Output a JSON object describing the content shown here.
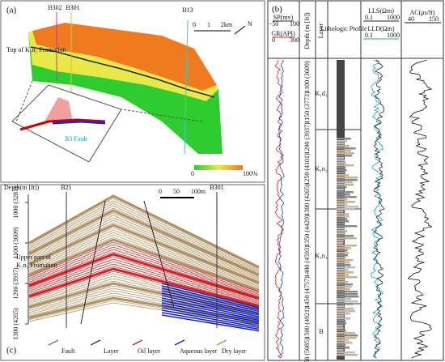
{
  "panel_a": {
    "label": "(a)",
    "wells": [
      "B302",
      "B301",
      "B13"
    ],
    "horizon": "Top of K₁n₁ Fromation",
    "scale": [
      "0",
      "1",
      "2km"
    ],
    "north": "N",
    "fault": "B3 Fault",
    "colorbar": [
      "0",
      "100%"
    ]
  },
  "panel_b": {
    "label": "(b)",
    "sp": {
      "name": "SP(mv)",
      "min": "−50",
      "max": "100"
    },
    "gr": {
      "name": "GR(API)",
      "min": "0",
      "max": "300"
    },
    "depth_header": "Depth (m [ft])",
    "layer_header": "Layer",
    "litho_header": "Lithologic Profile",
    "lls": {
      "name": "LLS(Ωm)",
      "min": "0.1",
      "max": "1000"
    },
    "lld": {
      "name": "LLD(Ωm)",
      "min": "0.1",
      "max": "1000"
    },
    "ac": {
      "name": "AC(μs/ft)",
      "min": "40",
      "max": "150"
    },
    "depths": [
      "1100 (3609)",
      "1150 (3773)",
      "1200 (3937)",
      "1250 (4101)",
      "1300 (4265)",
      "1350 (4429)",
      "1400 (4593)",
      "1450 (4757)",
      "1500 (4921)",
      "1550 (5085)"
    ],
    "layers": [
      "K₁d₁",
      "K₁n₂",
      "K₁n₁",
      "B"
    ]
  },
  "panel_c": {
    "label": "(c)",
    "depth_header": "Depth(m [ft])",
    "wells": [
      "B21",
      "B301"
    ],
    "depths": [
      "1000 (3281)",
      "1100 (3609)",
      "1200 (3937)",
      "1300 (4265)"
    ],
    "scale": [
      "0",
      "50",
      "100m"
    ],
    "formation": [
      "Upper part of",
      "K₁n₁ Fromation"
    ],
    "legend": [
      "Fault",
      "Layer",
      "Oil layer",
      "Aqueous layer",
      "Dry layer"
    ]
  }
}
